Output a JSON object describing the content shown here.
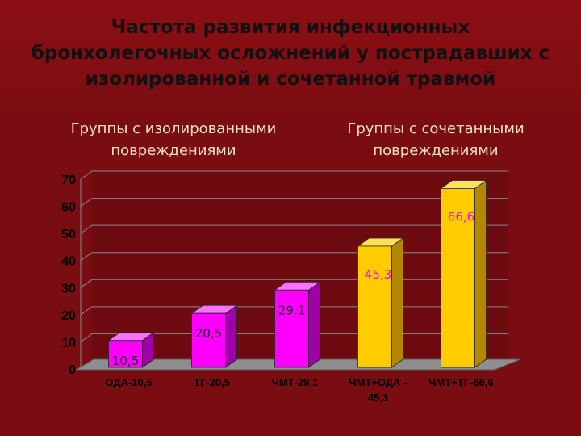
{
  "title_lines": [
    "Частота развития инфекционных",
    "бронхолегочных осложнений у пострадавших с",
    "изолированной и сочетанной травмой"
  ],
  "group_left": [
    "Группы с изолированными",
    "повреждениями"
  ],
  "group_right": [
    "Группы с сочетанными",
    "повреждениями"
  ],
  "colors": {
    "background": "#7a0d12",
    "isolated_front": "#ff00ff",
    "isolated_side": "#a000a8",
    "isolated_top": "#ff70ff",
    "combined_front": "#ffcc00",
    "combined_side": "#b38700",
    "combined_top": "#ffe05a",
    "data_label_isolated": "#2a003a",
    "data_label_combined": "#ff00ff"
  },
  "chart_data": {
    "type": "bar",
    "title": "Частота развития инфекционных бронхолегочных осложнений у пострадавших с изолированной и сочетанной травмой",
    "categories": [
      [
        "ОДА-10,5"
      ],
      [
        "ТГ-20,5"
      ],
      [
        "ЧМТ-29,1"
      ],
      [
        "ЧМТ+ОДА -",
        "45,3"
      ],
      [
        "ЧМТ+ТГ-66,6"
      ]
    ],
    "values": [
      10.5,
      20.5,
      29.1,
      45.3,
      66.6
    ],
    "data_labels": [
      "10,5",
      "20,5",
      "29,1",
      "45,3",
      "66,6"
    ],
    "groups": [
      "isolated",
      "isolated",
      "isolated",
      "combined",
      "combined"
    ],
    "ylim": [
      0,
      70
    ],
    "yticks": [
      "0",
      "10",
      "20",
      "30",
      "40",
      "50",
      "60",
      "70"
    ],
    "grid": true,
    "style": "3d-bar"
  }
}
